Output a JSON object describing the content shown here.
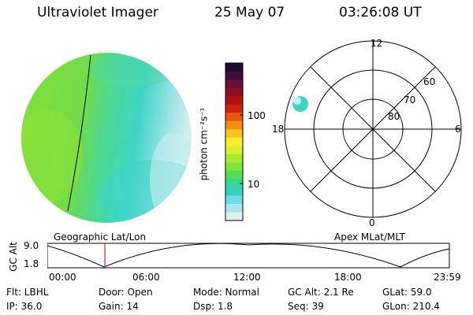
{
  "header": {
    "title": "Ultraviolet Imager",
    "date": "25 May 07",
    "time": "03:26:08 UT"
  },
  "colorbar": {
    "label": "photon cm⁻²s⁻¹",
    "ticks": [
      "100",
      "10"
    ],
    "colors": [
      "#1a0f2e",
      "#3d0d3a",
      "#6a0f38",
      "#8b0f22",
      "#b01212",
      "#d02010",
      "#e8560c",
      "#f28e10",
      "#f7c520",
      "#f8ef2a",
      "#d9f02e",
      "#a8ea30",
      "#7ee63a",
      "#54de54",
      "#36d694",
      "#34d0c4",
      "#6cdce6",
      "#aae8ee",
      "#dcf2f4"
    ]
  },
  "earth_image": {
    "colors": {
      "green": "#7de03e",
      "teal": "#3ed6c0",
      "pale": "#c8eef0"
    }
  },
  "polar_plot": {
    "mlt_labels": {
      "top": "12",
      "right": "6",
      "bottom": "0",
      "left": "18"
    },
    "lat_labels": [
      "60",
      "70",
      "80"
    ]
  },
  "timeline": {
    "left_label": "Geographic Lat/Lon",
    "right_label": "Apex MLat/MLT",
    "y_axis": "GC Alt",
    "y_ticks": [
      "9.0",
      "1.8"
    ],
    "x_ticks": [
      "00:00",
      "06:00",
      "12:00",
      "18:00",
      "23:59"
    ],
    "current_marker_color": "#e02020"
  },
  "info": {
    "flt": "Flt: LBHL",
    "door": "Door: Open",
    "mode": "Mode: Normal",
    "gcalt": "GC Alt: 2.1 Re",
    "glat": "GLat:  59.0",
    "ip": "IP: 36.0",
    "gain": "Gain: 14",
    "dsp": "Dsp:     1.8",
    "seq": "Seq: 39",
    "glon": "GLon: 210.4"
  }
}
